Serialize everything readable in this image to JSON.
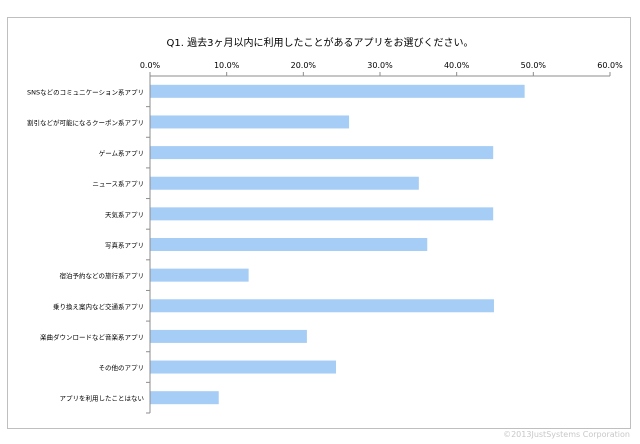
{
  "chart_data": {
    "type": "bar",
    "orientation": "horizontal",
    "title": "Q1. 過去3ヶ月以内に利用したことがあるアプリをお選びください。",
    "xlim": [
      0,
      60
    ],
    "xticks": [
      "0.0%",
      "10.0%",
      "20.0%",
      "30.0%",
      "40.0%",
      "50.0%",
      "60.0%"
    ],
    "grid": false,
    "bar_color": "#a6cdf5",
    "categories": [
      "SNSなどのコミュニケーション系アプリ",
      "割引などが可能になるクーポン系アプリ",
      "ゲーム系アプリ",
      "ニュース系アプリ",
      "天気系アプリ",
      "写真系アプリ",
      "宿泊予約などの旅行系アプリ",
      "乗り換え案内など交通系アプリ",
      "楽曲ダウンロードなど音楽系アプリ",
      "その他のアプリ",
      "アプリを利用したことはない"
    ],
    "values": [
      48.8,
      25.9,
      44.7,
      35.0,
      44.7,
      36.1,
      12.8,
      44.8,
      20.4,
      24.2,
      8.9
    ]
  },
  "copyright": "©2013JustSystems Corporation"
}
